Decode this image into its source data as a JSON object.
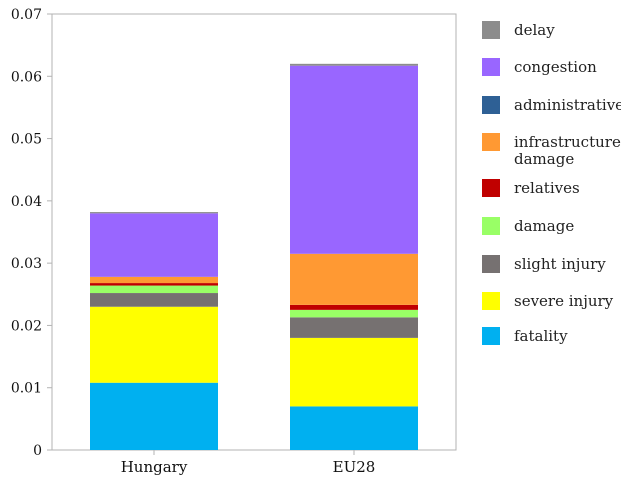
{
  "chart_data": {
    "type": "bar",
    "stacked": true,
    "categories": [
      "Hungary",
      "EU28"
    ],
    "ylim": [
      0,
      0.07
    ],
    "yticks": [
      0,
      0.01,
      0.02,
      0.03,
      0.04,
      0.05,
      0.06,
      0.07
    ],
    "ytick_labels": [
      "0",
      "0.01",
      "0.02",
      "0.03",
      "0.04",
      "0.05",
      "0.06",
      "0.07"
    ],
    "grid": false,
    "legend_position": "right",
    "legend_order": [
      "delay",
      "congestion",
      "administrative",
      "infrastructure damage",
      "relatives",
      "damage",
      "slight injury",
      "severe injury",
      "fatality"
    ],
    "series": [
      {
        "name": "fatality",
        "color": "#00b0f0",
        "values": [
          0.0108,
          0.007
        ]
      },
      {
        "name": "severe injury",
        "color": "#ffff00",
        "values": [
          0.0122,
          0.011
        ]
      },
      {
        "name": "slight injury",
        "color": "#767171",
        "values": [
          0.0022,
          0.0033
        ]
      },
      {
        "name": "damage",
        "color": "#99ff66",
        "values": [
          0.0012,
          0.0012
        ]
      },
      {
        "name": "relatives",
        "color": "#c00000",
        "values": [
          0.0004,
          0.0008
        ]
      },
      {
        "name": "infrastructure damage",
        "color": "#ff9933",
        "values": [
          0.001,
          0.0082
        ]
      },
      {
        "name": "administrative",
        "color": "#2e6095",
        "values": [
          0,
          0
        ]
      },
      {
        "name": "congestion",
        "color": "#9966ff",
        "values": [
          0.0102,
          0.0302
        ]
      },
      {
        "name": "delay",
        "color": "#8c8c8c",
        "values": [
          0.0002,
          0.0003
        ]
      }
    ]
  }
}
